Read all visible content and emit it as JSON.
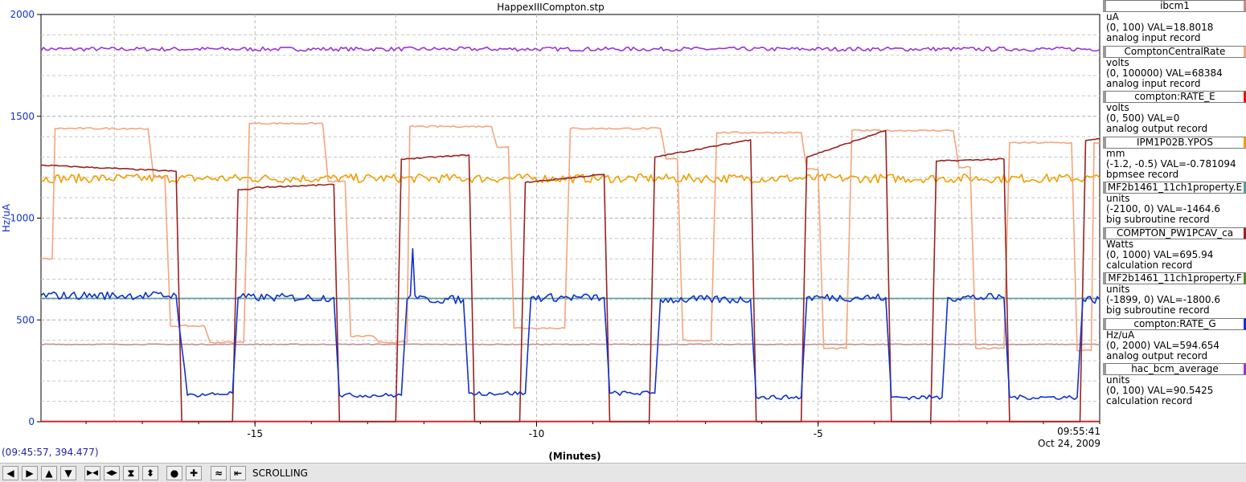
{
  "title": "HappexIIICompton.stp",
  "readout": "(09:45:57, 394.477)",
  "timestamp": {
    "time": "09:55:41",
    "date": "Oct 24, 2009"
  },
  "toolbar": {
    "mode_label": "SCROLLING",
    "buttons": [
      {
        "name": "pan-left-button",
        "glyph": "◀"
      },
      {
        "name": "pan-right-button",
        "glyph": "▶"
      },
      {
        "name": "pan-up-button",
        "glyph": "▲"
      },
      {
        "name": "pan-down-button",
        "glyph": "▼"
      },
      {
        "name": "zoom-in-x-button",
        "glyph": "▶◀"
      },
      {
        "name": "zoom-out-x-button",
        "glyph": "◀▶"
      },
      {
        "name": "zoom-in-y-button",
        "glyph": "⧗"
      },
      {
        "name": "zoom-out-y-button",
        "glyph": "⬍"
      },
      {
        "name": "auto-scale-button",
        "glyph": "●"
      },
      {
        "name": "add-button",
        "glyph": "✚"
      },
      {
        "name": "fit-button",
        "glyph": "≈"
      },
      {
        "name": "scroll-mode-button",
        "glyph": "⇤"
      }
    ]
  },
  "legend": [
    {
      "name": "ibcm1",
      "color": "#c09090",
      "units": "uA",
      "range_val": "(0, 100) VAL=18.8018",
      "record": "analog input record"
    },
    {
      "name": "ComptonCentralRate",
      "color": "#f5a57c",
      "units": "volts",
      "range_val": "(0, 100000) VAL=68384",
      "record": "analog input record"
    },
    {
      "name": "compton:RATE_E",
      "color": "#ee1111",
      "units": "volts",
      "range_val": "(0, 500)  VAL=0",
      "record": "analog output record"
    },
    {
      "name": "IPM1P02B.YPOS",
      "color": "#f0a000",
      "units": "mm",
      "range_val": "(-1.2, -0.5) VAL=-0.781094",
      "record": "bpmsee record"
    },
    {
      "name": "MF2b1461_11ch1property.E",
      "color": "#5a9e9e",
      "units": "units",
      "range_val": "(-2100, 0) VAL=-1464.6",
      "record": "big subroutine record"
    },
    {
      "name": "COMPTON_PW1PCAV_ca",
      "color": "#992222",
      "units": "Watts",
      "range_val": "(0, 1000) VAL=695.94",
      "record": "calculation record"
    },
    {
      "name": "MF2b1461_11ch1property.F",
      "color": "#5a8a22",
      "units": "units",
      "range_val": "(-1899, 0)  VAL=-1800.6",
      "record": "big subroutine record"
    },
    {
      "name": "compton:RATE_G",
      "color": "#1133cc",
      "units": "Hz/uA",
      "range_val": "(0, 2000) VAL=594.654",
      "record": "analog output record"
    },
    {
      "name": "hac_bcm_average",
      "color": "#9933dd",
      "units": "units",
      "range_val": "(0, 100) VAL=90.5425",
      "record": "calculation record"
    }
  ],
  "chart_data": {
    "type": "line",
    "title": "HappexIIICompton.stp",
    "xlabel": "(Minutes)",
    "ylabel": "Hz/uA",
    "xlim": [
      -18.8,
      0
    ],
    "ylim": [
      0,
      2000
    ],
    "x_ticks": [
      -15,
      -10,
      -5
    ],
    "y_ticks": [
      0,
      500,
      1000,
      1500,
      2000
    ],
    "grid": true,
    "legend_position": "right",
    "series": [
      {
        "name": "hac_bcm_average",
        "color": "#9933dd",
        "kind": "constant_noise",
        "base": 1830,
        "noise": 10
      },
      {
        "name": "IPM1P02B.YPOS",
        "color": "#f0a000",
        "kind": "constant_noise",
        "base": 1195,
        "noise": 22
      },
      {
        "name": "ibcm1",
        "color": "#c09090",
        "kind": "constant_noise",
        "base": 380,
        "noise": 2
      },
      {
        "name": "MF2b1461_11ch1property.E",
        "color": "#5a9e9e",
        "kind": "constant_noise",
        "base": 606,
        "noise": 0
      },
      {
        "name": "compton:RATE_E",
        "color": "#ee1111",
        "kind": "constant_noise",
        "base": 2,
        "noise": 0
      },
      {
        "name": "ComptonCentralRate",
        "color": "#f5a57c",
        "kind": "steps",
        "points": [
          [
            -18.8,
            800
          ],
          [
            -18.6,
            800
          ],
          [
            -18.55,
            1440
          ],
          [
            -16.9,
            1440
          ],
          [
            -16.8,
            1200
          ],
          [
            -16.6,
            1200
          ],
          [
            -16.5,
            470
          ],
          [
            -15.9,
            470
          ],
          [
            -15.8,
            390
          ],
          [
            -15.2,
            390
          ],
          [
            -15.1,
            1465
          ],
          [
            -13.8,
            1465
          ],
          [
            -13.7,
            1180
          ],
          [
            -13.4,
            1180
          ],
          [
            -13.3,
            420
          ],
          [
            -12.9,
            420
          ],
          [
            -12.8,
            390
          ],
          [
            -12.3,
            390
          ],
          [
            -12.25,
            1450
          ],
          [
            -10.8,
            1450
          ],
          [
            -10.7,
            1350
          ],
          [
            -10.5,
            1350
          ],
          [
            -10.4,
            460
          ],
          [
            -9.5,
            460
          ],
          [
            -9.4,
            1440
          ],
          [
            -7.8,
            1440
          ],
          [
            -7.7,
            1290
          ],
          [
            -7.5,
            1290
          ],
          [
            -7.4,
            400
          ],
          [
            -6.9,
            400
          ],
          [
            -6.8,
            1420
          ],
          [
            -5.3,
            1420
          ],
          [
            -5.2,
            1240
          ],
          [
            -5.0,
            1240
          ],
          [
            -4.9,
            360
          ],
          [
            -4.5,
            360
          ],
          [
            -4.4,
            1430
          ],
          [
            -2.6,
            1430
          ],
          [
            -2.5,
            1250
          ],
          [
            -2.3,
            1250
          ],
          [
            -2.2,
            360
          ],
          [
            -1.7,
            360
          ],
          [
            -1.6,
            1370
          ],
          [
            -0.5,
            1370
          ],
          [
            -0.4,
            350
          ],
          [
            -0.15,
            350
          ],
          [
            -0.1,
            1370
          ],
          [
            0,
            1370
          ]
        ]
      },
      {
        "name": "COMPTON_PW1PCAV_ca",
        "color": "#992222",
        "kind": "steps",
        "points": [
          [
            -18.8,
            1260
          ],
          [
            -16.4,
            1230
          ],
          [
            -16.3,
            0
          ],
          [
            -15.4,
            0
          ],
          [
            -15.3,
            1140
          ],
          [
            -15.1,
            1140
          ],
          [
            -15.0,
            1150
          ],
          [
            -13.6,
            1165
          ],
          [
            -13.5,
            0
          ],
          [
            -12.5,
            0
          ],
          [
            -12.4,
            1290
          ],
          [
            -11.2,
            1310
          ],
          [
            -11.1,
            0
          ],
          [
            -10.3,
            0
          ],
          [
            -10.2,
            1175
          ],
          [
            -8.8,
            1215
          ],
          [
            -8.7,
            0
          ],
          [
            -8.0,
            0
          ],
          [
            -7.9,
            1300
          ],
          [
            -6.2,
            1385
          ],
          [
            -6.1,
            0
          ],
          [
            -5.3,
            0
          ],
          [
            -5.2,
            1300
          ],
          [
            -3.8,
            1430
          ],
          [
            -3.7,
            0
          ],
          [
            -3.0,
            0
          ],
          [
            -2.9,
            1280
          ],
          [
            -1.7,
            1290
          ],
          [
            -1.6,
            0
          ],
          [
            -0.35,
            0
          ],
          [
            -0.25,
            1380
          ],
          [
            0,
            1390
          ]
        ]
      },
      {
        "name": "compton:RATE_G",
        "color": "#1133cc",
        "kind": "steps",
        "points": [
          [
            -18.8,
            620
          ],
          [
            -16.4,
            620
          ],
          [
            -16.2,
            130
          ],
          [
            -15.4,
            140
          ],
          [
            -15.3,
            610
          ],
          [
            -13.6,
            610
          ],
          [
            -13.5,
            130
          ],
          [
            -12.4,
            130
          ],
          [
            -12.3,
            600
          ],
          [
            -11.3,
            600
          ],
          [
            -11.2,
            140
          ],
          [
            -10.2,
            140
          ],
          [
            -10.1,
            610
          ],
          [
            -8.8,
            610
          ],
          [
            -8.7,
            140
          ],
          [
            -7.9,
            140
          ],
          [
            -7.8,
            600
          ],
          [
            -6.2,
            600
          ],
          [
            -6.1,
            120
          ],
          [
            -5.3,
            120
          ],
          [
            -5.2,
            610
          ],
          [
            -3.8,
            610
          ],
          [
            -3.7,
            120
          ],
          [
            -2.8,
            120
          ],
          [
            -2.7,
            610
          ],
          [
            -1.7,
            610
          ],
          [
            -1.6,
            120
          ],
          [
            -0.4,
            120
          ],
          [
            -0.3,
            600
          ],
          [
            0,
            600
          ]
        ],
        "spike": [
          -12.2,
          850
        ]
      }
    ]
  }
}
